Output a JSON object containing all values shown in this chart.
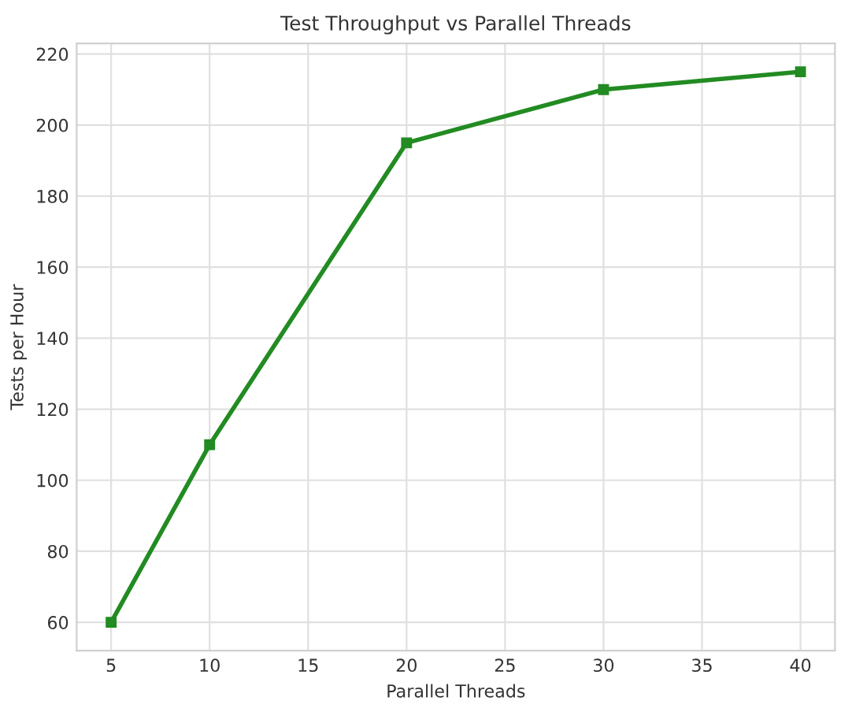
{
  "chart_data": {
    "type": "line",
    "title": "Test Throughput vs Parallel Threads",
    "xlabel": "Parallel Threads",
    "ylabel": "Tests per Hour",
    "x": [
      5,
      10,
      20,
      30,
      40
    ],
    "series": [
      {
        "color": "#228b22",
        "values": [
          60,
          110,
          195,
          210,
          215
        ]
      }
    ],
    "xlim": [
      3.25,
      41.75
    ],
    "xticks": [
      5,
      10,
      15,
      20,
      25,
      30,
      35,
      40
    ],
    "ylim": [
      52,
      223
    ],
    "yticks": [
      60,
      80,
      100,
      120,
      140,
      160,
      180,
      200,
      220
    ],
    "grid": true,
    "marker": "square",
    "line_style": "solid"
  }
}
